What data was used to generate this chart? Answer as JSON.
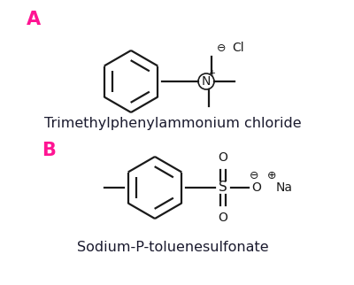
{
  "background_color": "#ffffff",
  "label_A_color": "#FF1493",
  "label_B_color": "#FF1493",
  "structure_color": "#1a1a1a",
  "name_color": "#1a1a2e",
  "title_A": "A",
  "title_B": "B",
  "name_A": "Trimethylphenylammonium chloride",
  "name_B": "Sodium-P-toluenesulfonate",
  "label_fontsize": 15,
  "name_fontsize": 11.5
}
